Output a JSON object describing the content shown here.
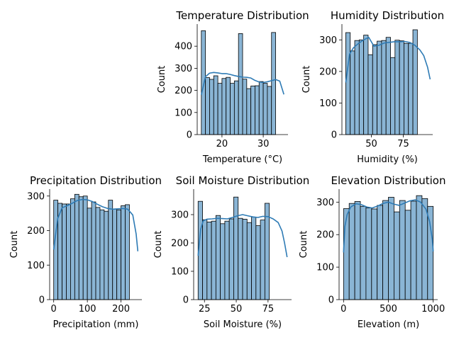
{
  "colors": {
    "bar_fill": "#8ab5d5",
    "bar_edge": "#000000",
    "kde_line": "#2e7bb5",
    "axis": "#000000",
    "background": "#ffffff"
  },
  "chart_data": [
    {
      "type": "bar",
      "subtype": "histogram_with_kde",
      "title": "Temperature Distribution",
      "xlabel": "Temperature (°C)",
      "ylabel": "Count",
      "xlim": [
        14.0,
        36.0
      ],
      "ylim": [
        0,
        500
      ],
      "xticks": [
        20,
        30
      ],
      "yticks": [
        0,
        100,
        200,
        300,
        400
      ],
      "bin_start": 15.0,
      "bin_width": 1.0,
      "values": [
        470,
        258,
        250,
        266,
        232,
        254,
        259,
        232,
        243,
        457,
        251,
        208,
        220,
        221,
        240,
        232,
        218,
        462
      ],
      "kde": {
        "x": [
          15,
          16,
          17,
          18,
          19,
          20,
          21,
          22,
          23,
          24,
          25,
          26,
          27,
          28,
          29,
          30,
          31,
          32,
          33,
          34,
          35
        ],
        "y": [
          180,
          262,
          278,
          281,
          279,
          276,
          276,
          272,
          267,
          263,
          260,
          259,
          256,
          245,
          238,
          236,
          239,
          244,
          249,
          242,
          182
        ]
      }
    },
    {
      "type": "bar",
      "subtype": "histogram_with_kde",
      "title": "Humidity Distribution",
      "xlabel": "Humidity (%)",
      "ylabel": "Count",
      "xlim": [
        27.0,
        98.0
      ],
      "ylim": [
        0,
        350
      ],
      "xticks": [
        50,
        75
      ],
      "yticks": [
        0,
        100,
        200,
        300
      ],
      "bin_start": 30.0,
      "bin_width": 3.5,
      "values": [
        323,
        265,
        298,
        300,
        315,
        253,
        285,
        296,
        298,
        308,
        244,
        299,
        297,
        289,
        289,
        332
      ],
      "kde": {
        "x": [
          30,
          33,
          36,
          40,
          44,
          48,
          52,
          56,
          60,
          64,
          68,
          72,
          76,
          80,
          84,
          88,
          91,
          94,
          96
        ],
        "y": [
          165,
          255,
          275,
          289,
          300,
          308,
          280,
          283,
          290,
          292,
          294,
          294,
          295,
          292,
          283,
          268,
          250,
          213,
          175
        ]
      }
    },
    {
      "type": "bar",
      "subtype": "histogram_with_kde",
      "title": "Precipitation Distribution",
      "xlabel": "Precipitation (mm)",
      "ylabel": "Count",
      "xlim": [
        -12.0,
        262.0
      ],
      "ylim": [
        0,
        320
      ],
      "xticks": [
        0,
        100,
        200
      ],
      "yticks": [
        0,
        100,
        200,
        300
      ],
      "bin_start": 0.0,
      "bin_width": 12.5,
      "values": [
        288,
        279,
        277,
        277,
        292,
        305,
        298,
        300,
        265,
        283,
        267,
        260,
        256,
        288,
        262,
        260,
        272,
        275
      ],
      "kde": {
        "x": [
          0,
          12,
          25,
          40,
          55,
          70,
          85,
          100,
          115,
          130,
          145,
          160,
          175,
          190,
          205,
          220,
          235,
          245,
          250
        ],
        "y": [
          145,
          235,
          266,
          272,
          279,
          287,
          290,
          289,
          284,
          276,
          269,
          264,
          262,
          263,
          264,
          262,
          245,
          190,
          140
        ]
      }
    },
    {
      "type": "bar",
      "subtype": "histogram_with_kde",
      "title": "Soil Moisture Distribution",
      "xlabel": "Soil Moisture (%)",
      "ylabel": "Count",
      "xlim": [
        16.5,
        93.5
      ],
      "ylim": [
        0,
        390
      ],
      "xticks": [
        25,
        50,
        75
      ],
      "yticks": [
        0,
        100,
        200,
        300
      ],
      "bin_start": 20.0,
      "bin_width": 3.5,
      "values": [
        347,
        282,
        274,
        277,
        297,
        268,
        277,
        285,
        362,
        287,
        284,
        272,
        291,
        261,
        281,
        340
      ],
      "kde": {
        "x": [
          20,
          22,
          24,
          27,
          31,
          35,
          39,
          43,
          47,
          51,
          55,
          59,
          63,
          67,
          71,
          75,
          79,
          83,
          86,
          88,
          90
        ],
        "y": [
          155,
          248,
          278,
          284,
          285,
          287,
          286,
          285,
          290,
          296,
          300,
          296,
          292,
          290,
          294,
          293,
          285,
          272,
          242,
          200,
          150
        ]
      }
    },
    {
      "type": "bar",
      "subtype": "histogram_with_kde",
      "title": "Elevation Distribution",
      "xlabel": "Elevation (m)",
      "ylabel": "Count",
      "xlim": [
        -50.0,
        1050.0
      ],
      "ylim": [
        0,
        340
      ],
      "xticks": [
        0,
        500,
        1000
      ],
      "yticks": [
        0,
        100,
        200,
        300
      ],
      "bin_start": 0.0,
      "bin_width": 62.5,
      "values": [
        280,
        296,
        302,
        287,
        282,
        279,
        290,
        305,
        315,
        270,
        305,
        275,
        303,
        320,
        311,
        287
      ],
      "kde": {
        "x": [
          0,
          15,
          40,
          80,
          140,
          200,
          260,
          320,
          380,
          440,
          500,
          560,
          620,
          680,
          740,
          800,
          860,
          920,
          960,
          990,
          1000
        ],
        "y": [
          145,
          225,
          262,
          285,
          295,
          292,
          285,
          282,
          288,
          296,
          300,
          294,
          290,
          297,
          304,
          307,
          300,
          278,
          240,
          185,
          148
        ]
      }
    }
  ]
}
